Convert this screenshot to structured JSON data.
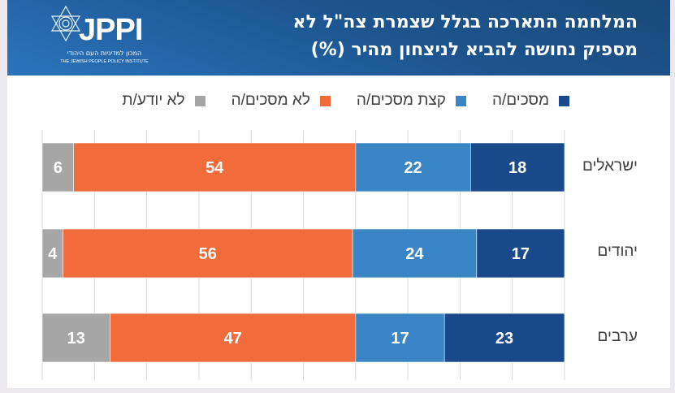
{
  "header": {
    "title_line1": "המלחמה התארכה בגלל שצמרת צה\"ל לא",
    "title_line2": "מספיק נחושה להביא לניצחון מהיר (%)",
    "logo_text": "JPPI",
    "logo_hebrew": "המכון למדיניות העם היהודי",
    "logo_english": "THE JEWISH PEOPLE POLICY INSTITUTE"
  },
  "colors": {
    "agree": "#1a4a8c",
    "somewhat_agree": "#3a85c6",
    "disagree": "#f26b3a",
    "dont_know": "#a6a6a6",
    "grid": "#d9d9d9"
  },
  "chart_data": {
    "type": "bar",
    "orientation": "horizontal",
    "stacked": true,
    "direction": "right-to-left",
    "title": "המלחמה התארכה בגלל שצמרת צה\"ל לא מספיק נחושה להביא לניצחון מהיר (%)",
    "categories": [
      "ישראלים",
      "יהודים",
      "ערבים"
    ],
    "series": [
      {
        "name": "מסכים/ה",
        "key": "agree",
        "values": [
          18,
          17,
          23
        ]
      },
      {
        "name": "קצת מסכים/ה",
        "key": "somewhat_agree",
        "values": [
          22,
          24,
          17
        ]
      },
      {
        "name": "לא מסכים/ה",
        "key": "disagree",
        "values": [
          54,
          56,
          47
        ]
      },
      {
        "name": "לא יודע/ת",
        "key": "dont_know",
        "values": [
          6,
          4,
          13
        ]
      }
    ],
    "xlim": [
      0,
      100
    ],
    "grid": true,
    "legend_position": "top"
  }
}
